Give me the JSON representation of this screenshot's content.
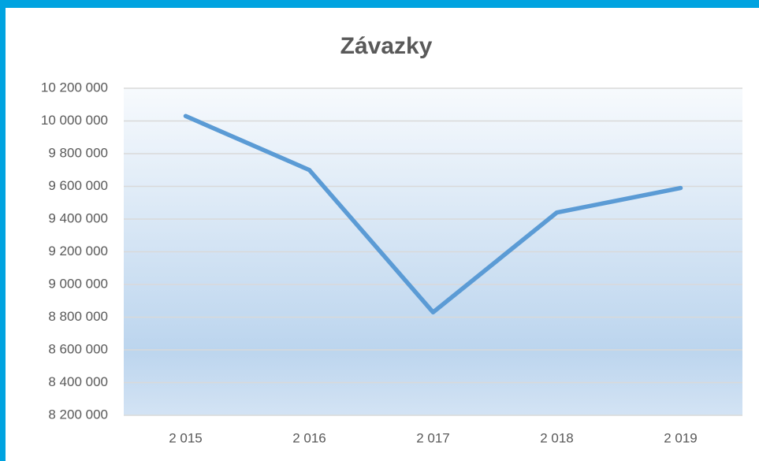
{
  "chart_data": {
    "type": "line",
    "title": "Závazky",
    "categories": [
      "2 015",
      "2 016",
      "2 017",
      "2 018",
      "2 019"
    ],
    "series": [
      {
        "name": "Závazky",
        "color": "#5b9bd5",
        "values": [
          10030000,
          9700000,
          8830000,
          9440000,
          9590000
        ]
      }
    ],
    "ylim": [
      8200000,
      10200000
    ],
    "yticks": [
      {
        "value": 8200000,
        "label": "8 200 000"
      },
      {
        "value": 8400000,
        "label": "8 400 000"
      },
      {
        "value": 8600000,
        "label": "8 600 000"
      },
      {
        "value": 8800000,
        "label": "8 800 000"
      },
      {
        "value": 9000000,
        "label": "9 000 000"
      },
      {
        "value": 9200000,
        "label": "9 200 000"
      },
      {
        "value": 9400000,
        "label": "9 400 000"
      },
      {
        "value": 9600000,
        "label": "9 600 000"
      },
      {
        "value": 9800000,
        "label": "9 800 000"
      },
      {
        "value": 10000000,
        "label": "10 000 000"
      },
      {
        "value": 10200000,
        "label": "10 200 000"
      }
    ],
    "grid": true
  }
}
